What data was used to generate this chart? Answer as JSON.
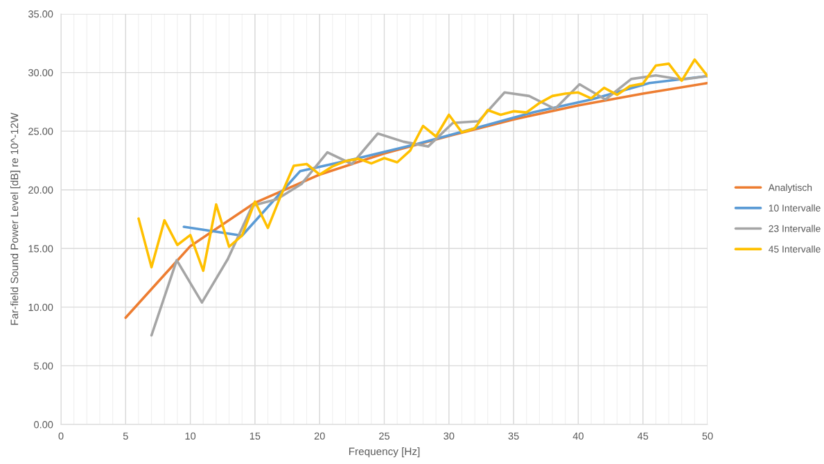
{
  "chart_data": {
    "type": "line",
    "xlabel": "Frequency [Hz]",
    "ylabel": "Far-field Sound Power Level [dB] re 10^-12W",
    "xlim": [
      0,
      50
    ],
    "xticks": [
      0,
      5,
      10,
      15,
      20,
      25,
      30,
      35,
      40,
      45,
      50
    ],
    "ylim": [
      0,
      35
    ],
    "yticks": [
      {
        "value": 0,
        "label": "0.00"
      },
      {
        "value": 5,
        "label": "5.00"
      },
      {
        "value": 10,
        "label": "10.00"
      },
      {
        "value": 15,
        "label": "15.00"
      },
      {
        "value": 20,
        "label": "20.00"
      },
      {
        "value": 25,
        "label": "25.00"
      },
      {
        "value": 30,
        "label": "30.00"
      },
      {
        "value": 35,
        "label": "35.00"
      }
    ],
    "grid": true,
    "legend": "right",
    "marker": "none",
    "line_style": "solid",
    "series": [
      {
        "name": "Analytisch",
        "color": "#ed7d31",
        "x": [
          5,
          10,
          15,
          20,
          25,
          30,
          35,
          40,
          45,
          50
        ],
        "values": [
          9.1,
          15.2,
          18.9,
          21.3,
          23.1,
          24.6,
          26.0,
          27.2,
          28.2,
          29.1
        ]
      },
      {
        "name": "10 Intervalle",
        "color": "#5b9bd5",
        "x": [
          9.5,
          14,
          18.5,
          23,
          27.5,
          32,
          36.5,
          41,
          45.5,
          50
        ],
        "values": [
          16.85,
          16.1,
          21.6,
          22.7,
          23.9,
          25.25,
          26.6,
          27.7,
          29.1,
          29.7
        ]
      },
      {
        "name": "23 Intervalle",
        "color": "#a5a5a5",
        "x": [
          7,
          8.95,
          10.9,
          12.9,
          14.8,
          16.7,
          18.6,
          20.6,
          22.5,
          24.5,
          26.5,
          28.4,
          30.3,
          32.3,
          34.3,
          36.2,
          38.2,
          40.1,
          42.1,
          44.1,
          46,
          48,
          50
        ],
        "values": [
          7.6,
          14.0,
          10.4,
          14.1,
          18.65,
          19.2,
          20.5,
          23.2,
          22.2,
          24.8,
          24.1,
          23.7,
          25.7,
          25.85,
          28.3,
          28.0,
          26.9,
          29.0,
          27.7,
          29.45,
          29.75,
          29.4,
          29.7
        ]
      },
      {
        "name": "45 Intervalle",
        "color": "#ffc000",
        "x": [
          6,
          7,
          8,
          9,
          10,
          11,
          12,
          13,
          14,
          15,
          16,
          17,
          18,
          19,
          20,
          21,
          22,
          23,
          24,
          25,
          26,
          27,
          28,
          29,
          30,
          31,
          32,
          33,
          34,
          35,
          36,
          37,
          38,
          39,
          40,
          41,
          42,
          43,
          44,
          45,
          46,
          47,
          48,
          49,
          50
        ],
        "values": [
          17.55,
          13.4,
          17.4,
          15.3,
          16.15,
          13.1,
          18.75,
          15.15,
          16.1,
          19.0,
          16.75,
          19.5,
          22.05,
          22.2,
          21.3,
          22.0,
          22.45,
          22.65,
          22.25,
          22.7,
          22.35,
          23.35,
          25.45,
          24.55,
          26.4,
          24.9,
          25.25,
          26.8,
          26.4,
          26.7,
          26.6,
          27.4,
          28.0,
          28.2,
          28.3,
          27.8,
          28.7,
          28.1,
          28.85,
          29.05,
          30.6,
          30.75,
          29.3,
          31.1,
          29.7
        ]
      }
    ]
  }
}
